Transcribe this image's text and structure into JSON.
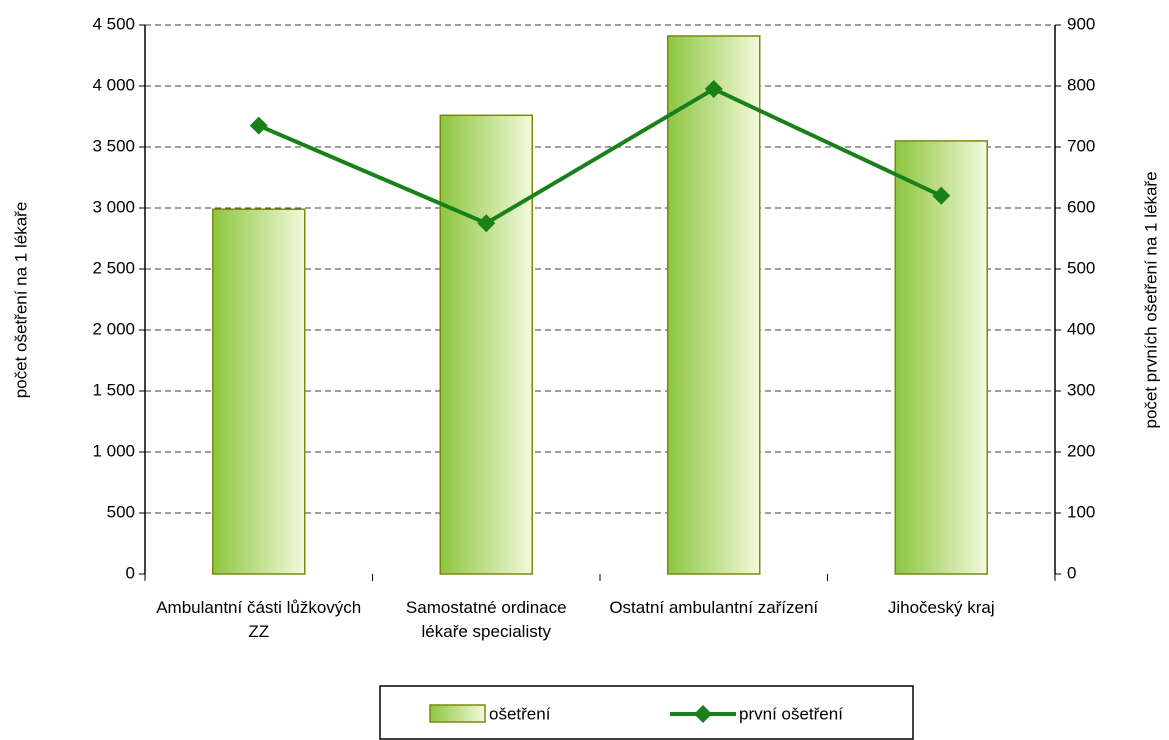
{
  "chart_data": {
    "type": "bar",
    "categories": [
      "Ambulantní části lůžkových ZZ",
      "Samostatné ordinace lékaře specialisty",
      "Ostatní ambulantní zařízení",
      "Jihočeský kraj"
    ],
    "series": [
      {
        "name": "ošetření",
        "type": "bar",
        "color": "#8dc63f",
        "values": [
          2990,
          3760,
          4410,
          3550
        ]
      },
      {
        "name": "první ošetření",
        "type": "line",
        "axis": "y2",
        "color": "#1a801a",
        "values": [
          735,
          575,
          795,
          620
        ]
      }
    ],
    "y_label": "počet ošetření na 1 lékaře",
    "y2_label": "počet prvních ošetření na 1 lékaře",
    "ylim": [
      0,
      4500
    ],
    "yticks": [
      0,
      500,
      {
        "value": 1000,
        "label": "1 000"
      },
      {
        "value": 1500,
        "label": "1 500"
      },
      {
        "value": 2000,
        "label": "2 000"
      },
      {
        "value": 2500,
        "label": "2 500"
      },
      {
        "value": 3000,
        "label": "3 000"
      },
      {
        "value": 3500,
        "label": "3 500"
      },
      {
        "value": 4000,
        "label": "4 000"
      },
      {
        "value": 4500,
        "label": "4 500"
      }
    ],
    "y2lim": [
      0,
      900
    ],
    "y2ticks": [
      0,
      100,
      200,
      300,
      400,
      500,
      600,
      700,
      800,
      900
    ],
    "grid": true,
    "legend": "bottom"
  }
}
